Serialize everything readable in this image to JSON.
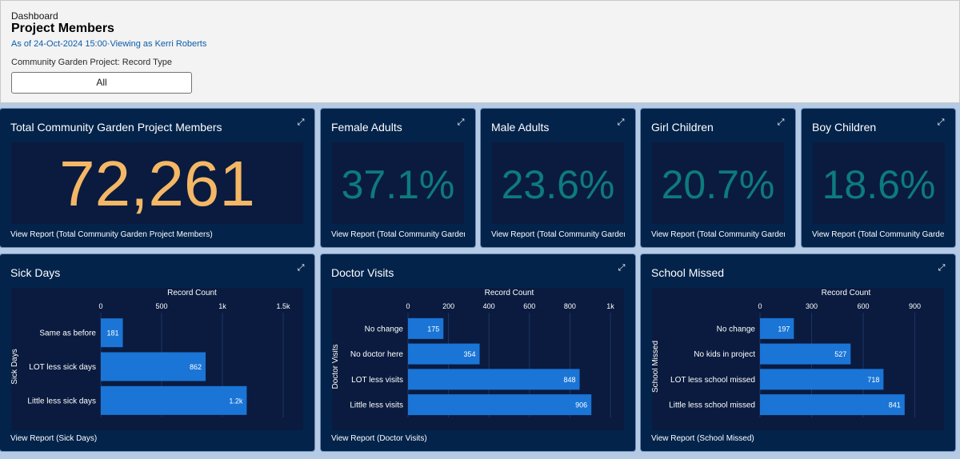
{
  "header": {
    "type_label": "Dashboard",
    "title": "Project Members",
    "subtitle": "As of 24-Oct-2024 15:00·Viewing as Kerri Roberts",
    "filter_label": "Community Garden Project: Record Type",
    "filter_value": "All"
  },
  "colors": {
    "card_bg": "#03234b",
    "metric_orange": "#f4b765",
    "metric_teal": "#0d7b7d",
    "bar_blue": "#1a75d6"
  },
  "metrics": [
    {
      "title": "Total Community Garden Project Members",
      "value": "72,261",
      "link": "View Report (Total Community Garden Project Members)"
    },
    {
      "title": "Female Adults",
      "value": "37.1%",
      "link": "View Report (Total Community Garden Project Members)"
    },
    {
      "title": "Male Adults",
      "value": "23.6%",
      "link": "View Report (Total Community Garden Project Members)"
    },
    {
      "title": "Girl Children",
      "value": "20.7%",
      "link": "View Report (Total Community Garden Project Members)"
    },
    {
      "title": "Boy Children",
      "value": "18.6%",
      "link": "View Report (Total Community Garden Project Members)"
    }
  ],
  "chart_data": [
    {
      "type": "bar",
      "orientation": "horizontal",
      "title": "Sick Days",
      "xlabel": "Record Count",
      "ylabel": "Sick Days",
      "categories": [
        "Same as before",
        "LOT less sick days",
        "Little less sick days"
      ],
      "values": [
        181,
        862,
        1200
      ],
      "value_labels": [
        "181",
        "862",
        "1.2k"
      ],
      "xlim": [
        0,
        1500
      ],
      "ticks": [
        0,
        500,
        1000,
        1500
      ],
      "tick_labels": [
        "0",
        "500",
        "1k",
        "1.5k"
      ],
      "grid": true,
      "link": "View Report (Sick Days)"
    },
    {
      "type": "bar",
      "orientation": "horizontal",
      "title": "Doctor Visits",
      "xlabel": "Record Count",
      "ylabel": "Doctor Visits",
      "categories": [
        "No change",
        "No doctor here",
        "LOT less visits",
        "Little less visits"
      ],
      "values": [
        175,
        354,
        848,
        906
      ],
      "value_labels": [
        "175",
        "354",
        "848",
        "906"
      ],
      "xlim": [
        0,
        1000
      ],
      "ticks": [
        0,
        200,
        400,
        600,
        800,
        1000
      ],
      "tick_labels": [
        "0",
        "200",
        "400",
        "600",
        "800",
        "1k"
      ],
      "grid": true,
      "link": "View Report (Doctor Visits)"
    },
    {
      "type": "bar",
      "orientation": "horizontal",
      "title": "School Missed",
      "xlabel": "Record Count",
      "ylabel": "School Missed",
      "categories": [
        "No change",
        "No kids in project",
        "LOT less school missed",
        "Little less school missed"
      ],
      "values": [
        197,
        527,
        718,
        841
      ],
      "value_labels": [
        "197",
        "527",
        "718",
        "841"
      ],
      "xlim": [
        0,
        1000
      ],
      "ticks": [
        0,
        300,
        600,
        900
      ],
      "tick_labels": [
        "0",
        "300",
        "600",
        "900"
      ],
      "grid": true,
      "link": "View Report (School Missed)"
    }
  ]
}
